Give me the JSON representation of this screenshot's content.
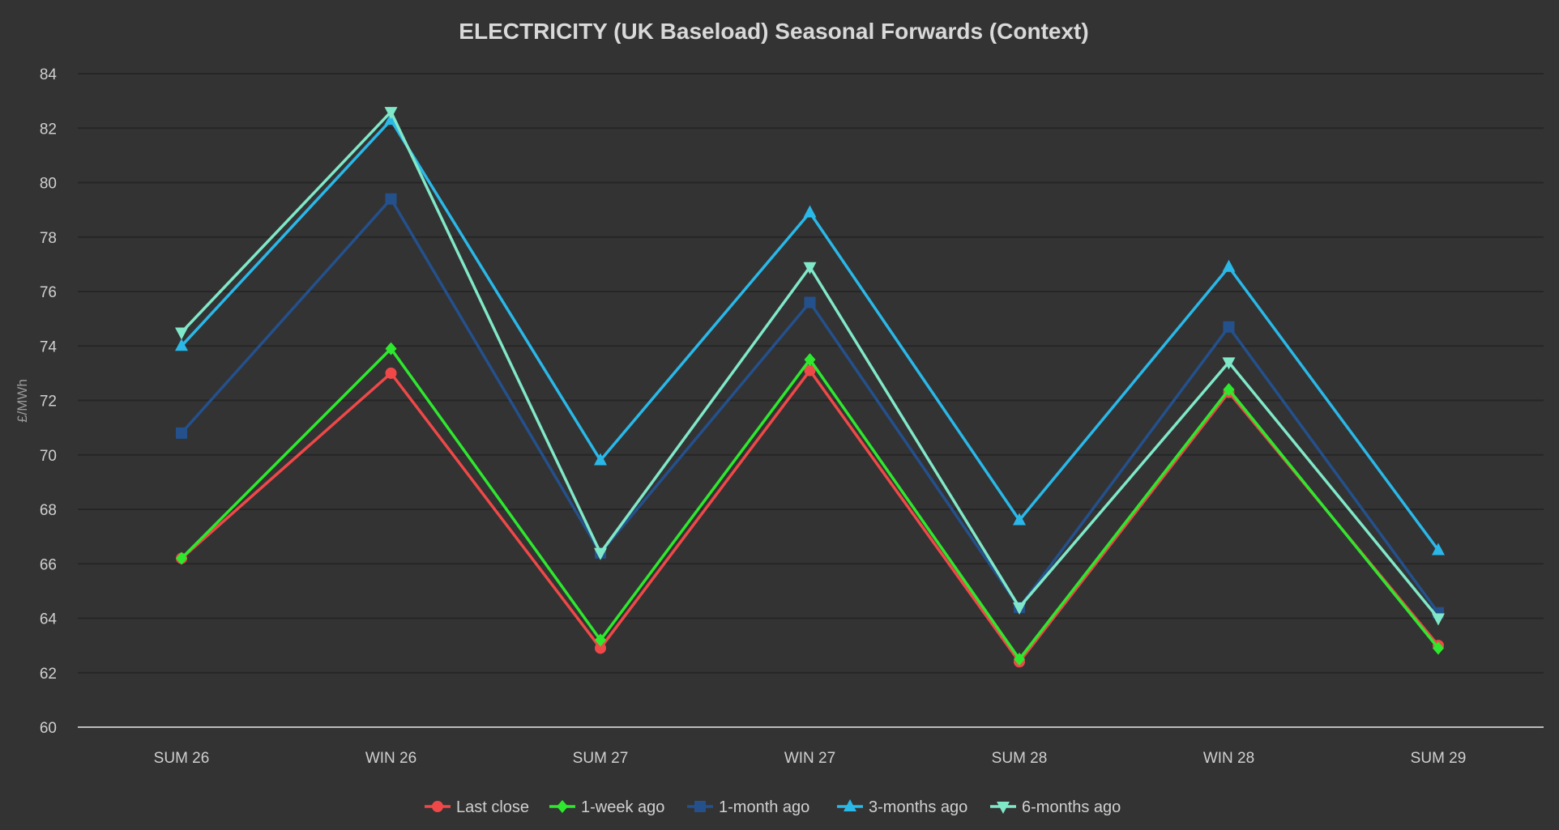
{
  "chart_data": {
    "type": "line",
    "title": "ELECTRICITY (UK Baseload) Seasonal Forwards (Context)",
    "xlabel": "",
    "ylabel": "£/MWh",
    "categories": [
      "SUM 26",
      "WIN 26",
      "SUM 27",
      "WIN 27",
      "SUM 28",
      "WIN 28",
      "SUM 29"
    ],
    "ylim": [
      60,
      84
    ],
    "yticks": [
      60,
      62,
      64,
      66,
      68,
      70,
      72,
      74,
      76,
      78,
      80,
      82,
      84
    ],
    "grid": true,
    "legend_position": "bottom-center",
    "series": [
      {
        "name": "Last close",
        "color": "#f04848",
        "marker": "circle",
        "values": [
          66.2,
          73.0,
          62.9,
          73.1,
          62.4,
          72.3,
          63.0
        ]
      },
      {
        "name": "1-week ago",
        "color": "#2ee82e",
        "marker": "diamond",
        "values": [
          66.2,
          73.9,
          63.2,
          73.5,
          62.5,
          72.4,
          62.9
        ]
      },
      {
        "name": "1-month ago",
        "color": "#24508c",
        "marker": "square",
        "values": [
          70.8,
          79.4,
          66.4,
          75.6,
          64.4,
          74.7,
          64.2
        ]
      },
      {
        "name": "3-months ago",
        "color": "#2ab8e8",
        "marker": "triangle-up",
        "values": [
          74.0,
          82.3,
          69.8,
          78.9,
          67.6,
          76.9,
          66.5
        ]
      },
      {
        "name": "6-months ago",
        "color": "#80e8c8",
        "marker": "triangle-down",
        "values": [
          74.5,
          82.6,
          66.4,
          76.9,
          64.4,
          73.4,
          64.0
        ]
      }
    ]
  },
  "colors": {
    "background": "#333333",
    "grid": "#262626",
    "axis": "#bcbcbc",
    "text": "#d0d0d0"
  }
}
